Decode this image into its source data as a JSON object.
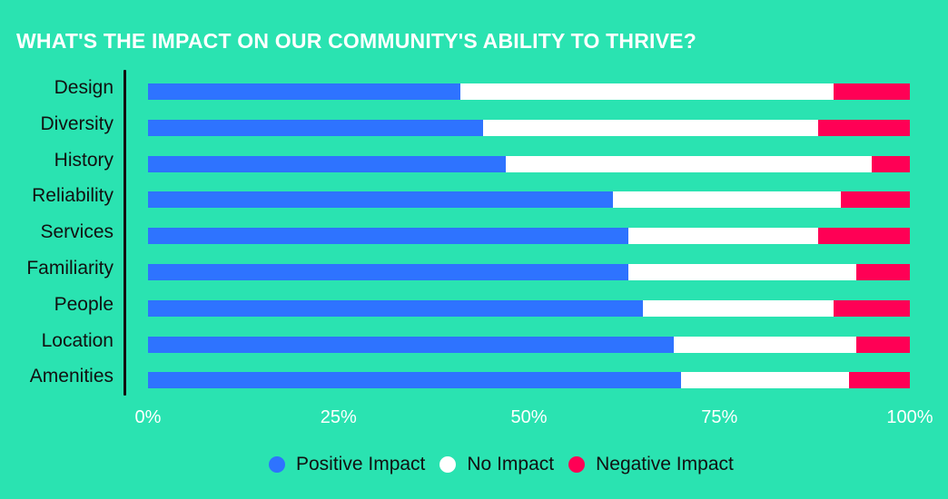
{
  "title": "WHAT'S THE IMPACT ON OUR COMMUNITY'S ABILITY TO THRIVE?",
  "colors": {
    "background": "#2ae3b1",
    "positive": "#2e73ff",
    "none": "#ffffff",
    "negative": "#ff0055"
  },
  "ticks": [
    "0%",
    "25%",
    "50%",
    "75%",
    "100%"
  ],
  "legend": [
    {
      "label": "Positive Impact",
      "color": "#2e73ff"
    },
    {
      "label": "No Impact",
      "color": "#ffffff"
    },
    {
      "label": "Negative Impact",
      "color": "#ff0055"
    }
  ],
  "chart_data": {
    "type": "bar",
    "orientation": "horizontal",
    "stacked": true,
    "title": "WHAT'S THE IMPACT ON OUR COMMUNITY'S ABILITY TO THRIVE?",
    "xlabel": "",
    "ylabel": "",
    "xlim": [
      0,
      100
    ],
    "x_ticks": [
      "0%",
      "25%",
      "50%",
      "75%",
      "100%"
    ],
    "grid": false,
    "legend_position": "bottom",
    "categories": [
      "Design",
      "Diversity",
      "History",
      "Reliability",
      "Services",
      "Familiarity",
      "People",
      "Location",
      "Amenities"
    ],
    "series": [
      {
        "name": "Positive Impact",
        "color": "#2e73ff",
        "values": [
          41,
          44,
          47,
          61,
          63,
          63,
          65,
          69,
          70
        ]
      },
      {
        "name": "No Impact",
        "color": "#ffffff",
        "values": [
          49,
          44,
          48,
          30,
          25,
          30,
          25,
          24,
          22
        ]
      },
      {
        "name": "Negative Impact",
        "color": "#ff0055",
        "values": [
          10,
          12,
          5,
          9,
          12,
          7,
          10,
          7,
          8
        ]
      }
    ]
  }
}
